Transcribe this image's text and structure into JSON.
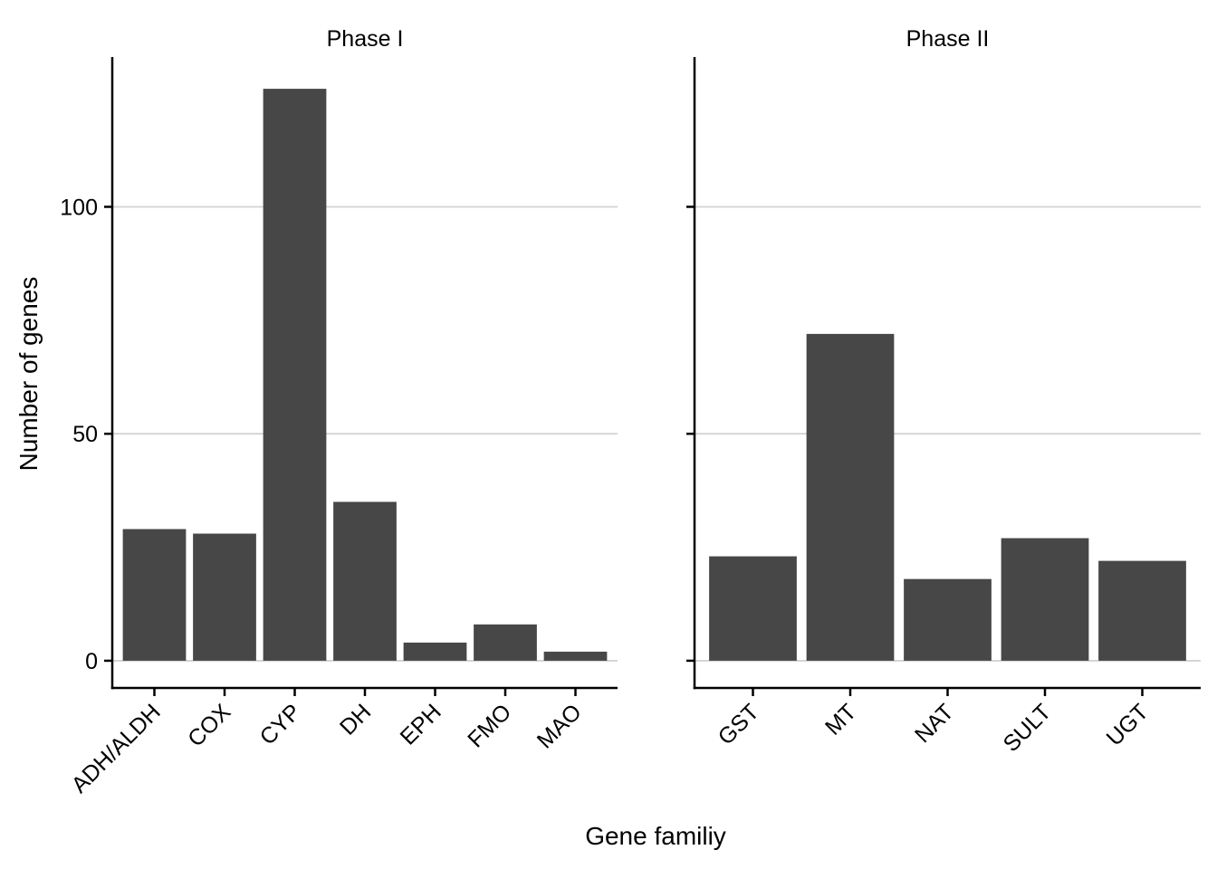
{
  "chart_data": {
    "type": "bar",
    "xlabel": "Gene familiy",
    "ylabel": "Number of genes",
    "ylim": [
      -6,
      133
    ],
    "yticks": [
      0,
      50,
      100
    ],
    "grid": "horizontal-major",
    "bar_color": "#474747",
    "grid_color": "#d3d3d3",
    "panels": [
      {
        "title": "Phase I",
        "categories": [
          "ADH/ALDH",
          "COX",
          "CYP",
          "DH",
          "EPH",
          "FMO",
          "MAO"
        ],
        "values": [
          29,
          28,
          126,
          35,
          4,
          8,
          2
        ]
      },
      {
        "title": "Phase II",
        "categories": [
          "GST",
          "MT",
          "NAT",
          "SULT",
          "UGT"
        ],
        "values": [
          23,
          72,
          18,
          27,
          22
        ]
      }
    ]
  }
}
